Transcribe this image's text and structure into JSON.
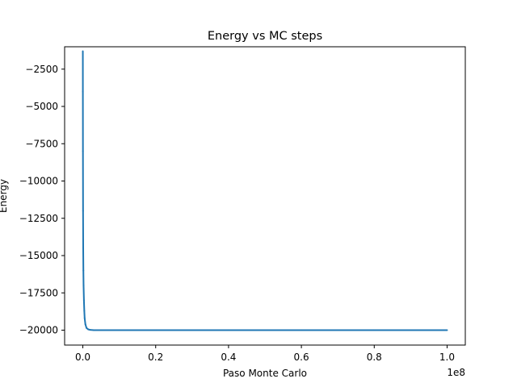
{
  "chart_data": {
    "type": "line",
    "title": "Energy vs MC steps",
    "xlabel": "Paso Monte Carlo",
    "ylabel": "Energy",
    "x_offset_label": "1e8",
    "xlim": [
      -5000000,
      105000000
    ],
    "ylim": [
      -21000,
      -1000
    ],
    "xticks": [
      0,
      20000000,
      40000000,
      60000000,
      80000000,
      100000000
    ],
    "xtick_labels": [
      "0.0",
      "0.2",
      "0.4",
      "0.6",
      "0.8",
      "1.0"
    ],
    "yticks": [
      -2500,
      -5000,
      -7500,
      -10000,
      -12500,
      -15000,
      -17500,
      -20000
    ],
    "ytick_labels": [
      "−2500",
      "−5000",
      "−7500",
      "−10000",
      "−12500",
      "−15000",
      "−17500",
      "−20000"
    ],
    "grid": false,
    "series": [
      {
        "color": "#1f77b4",
        "x": [
          0,
          10000,
          30000,
          60000,
          100000,
          150000,
          200000,
          300000,
          400000,
          500000,
          700000,
          1000000,
          1500000,
          2000000,
          3000000,
          5000000,
          10000000,
          20000000,
          40000000,
          60000000,
          80000000,
          100000000
        ],
        "y": [
          -1300,
          -4000,
          -8000,
          -12000,
          -14500,
          -16000,
          -17000,
          -18000,
          -18700,
          -19200,
          -19600,
          -19850,
          -19950,
          -19980,
          -20000,
          -20000,
          -20000,
          -20000,
          -20000,
          -20000,
          -20000,
          -20000
        ]
      }
    ]
  }
}
